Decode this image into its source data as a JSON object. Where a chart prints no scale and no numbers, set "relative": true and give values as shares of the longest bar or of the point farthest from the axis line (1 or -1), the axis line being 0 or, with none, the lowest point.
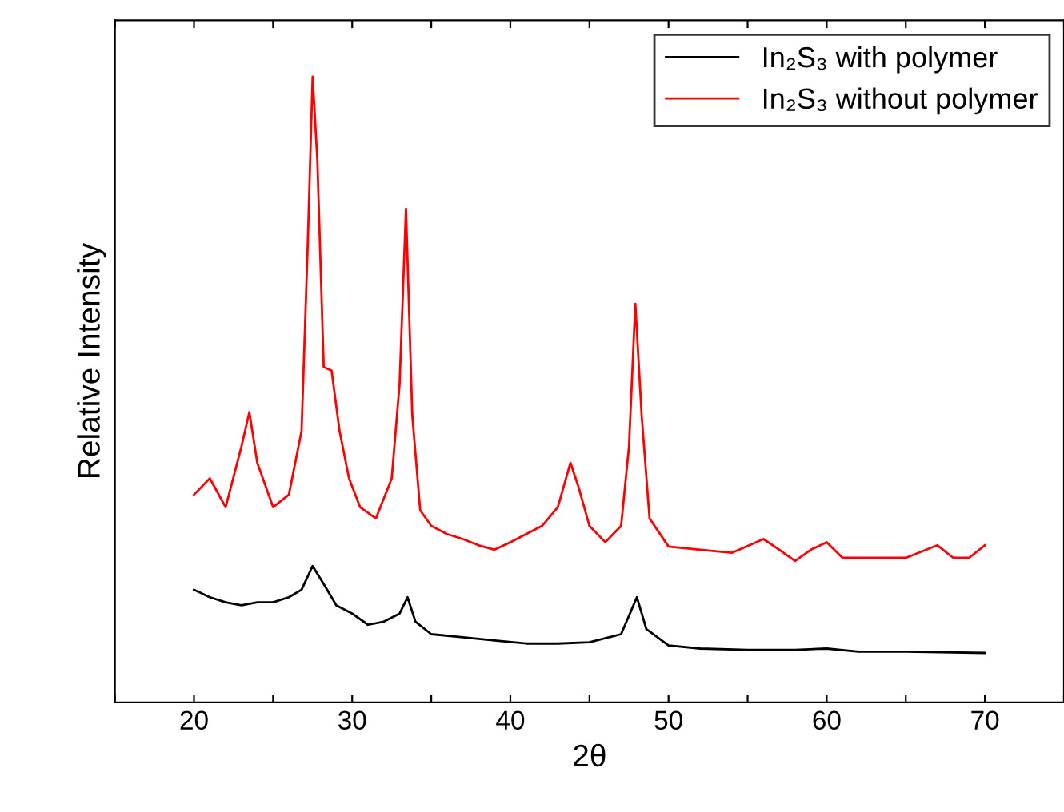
{
  "chart_data": {
    "type": "line",
    "relative": true,
    "xlabel": "2θ",
    "ylabel": "Relative Intensity",
    "xlim": [
      15,
      75
    ],
    "xticks": [
      {
        "value": 15,
        "label": null
      },
      20,
      {
        "value": 25,
        "label": null
      },
      30,
      {
        "value": 35,
        "label": null
      },
      40,
      {
        "value": 45,
        "label": null
      },
      50,
      {
        "value": 55,
        "label": null
      },
      60,
      {
        "value": 65,
        "label": null
      },
      70,
      {
        "value": 75,
        "label": null
      }
    ],
    "legend": "top right",
    "grid": false,
    "line_style": "solid",
    "series": [
      {
        "name": "In₂S₃ with polymer",
        "color": "#000000",
        "x": [
          20,
          21,
          22,
          23,
          24,
          25,
          26,
          26.8,
          27.5,
          28.3,
          29,
          30,
          31,
          32,
          33,
          33.5,
          34,
          35,
          37,
          39,
          41,
          43,
          45,
          47,
          48,
          48.6,
          50,
          52,
          55,
          58,
          60,
          62,
          65,
          70
        ],
        "values": [
          0.18,
          0.168,
          0.16,
          0.155,
          0.16,
          0.16,
          0.168,
          0.18,
          0.218,
          0.185,
          0.155,
          0.142,
          0.124,
          0.129,
          0.142,
          0.168,
          0.129,
          0.109,
          0.104,
          0.099,
          0.094,
          0.094,
          0.096,
          0.109,
          0.168,
          0.117,
          0.091,
          0.086,
          0.084,
          0.084,
          0.086,
          0.081,
          0.081,
          0.079
        ]
      },
      {
        "name": "In₂S₃ without polymer",
        "color": "#ff0000",
        "x": [
          20,
          21,
          22,
          23,
          23.5,
          24,
          25,
          26,
          26.8,
          27.2,
          27.5,
          27.8,
          28.2,
          28.7,
          29.2,
          29.8,
          30.5,
          31.5,
          32.5,
          33,
          33.4,
          33.8,
          34.3,
          35,
          36,
          37,
          38,
          39,
          40,
          41,
          42,
          43,
          43.8,
          44.3,
          45,
          46,
          47,
          47.5,
          47.9,
          48.3,
          48.8,
          50,
          52,
          54,
          56,
          57,
          58,
          59,
          60,
          61,
          63,
          65,
          67,
          68,
          69,
          70
        ],
        "values": [
          0.332,
          0.358,
          0.312,
          0.409,
          0.464,
          0.383,
          0.312,
          0.332,
          0.434,
          0.739,
          1.0,
          0.865,
          0.536,
          0.53,
          0.434,
          0.358,
          0.312,
          0.294,
          0.358,
          0.51,
          0.789,
          0.459,
          0.307,
          0.282,
          0.269,
          0.261,
          0.251,
          0.244,
          0.256,
          0.269,
          0.282,
          0.312,
          0.383,
          0.345,
          0.282,
          0.256,
          0.282,
          0.409,
          0.637,
          0.459,
          0.294,
          0.249,
          0.244,
          0.239,
          0.261,
          0.244,
          0.226,
          0.244,
          0.256,
          0.231,
          0.231,
          0.231,
          0.251,
          0.231,
          0.231,
          0.251
        ]
      }
    ]
  }
}
